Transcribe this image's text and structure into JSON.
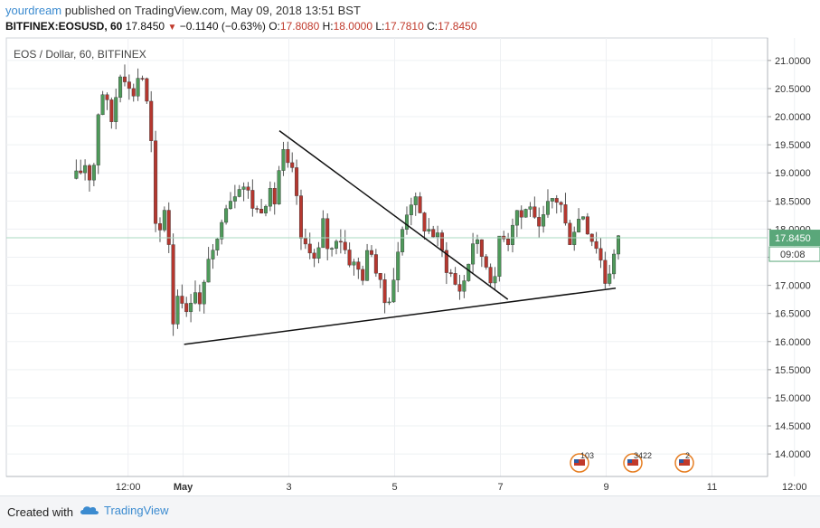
{
  "header": {
    "author": "yourdream",
    "published": "published on TradingView.com, May 09, 2018 13:51 BST"
  },
  "symbol_bar": {
    "symbol": "BITFINEX:EOSUSD, 60",
    "last": "17.8450",
    "change": "−0.1140 (−0.63%)",
    "o_label": "O:",
    "o": "17.8080",
    "h_label": "H:",
    "h": "18.0000",
    "l_label": "L:",
    "l": "17.7810",
    "c_label": "C:",
    "c": "17.8450",
    "down_color": "#c0392b"
  },
  "footer": {
    "created_with": "Created with",
    "brand": "TradingView"
  },
  "chart_data": {
    "type": "candlestick",
    "title": "EOS / Dollar, 60, BITFINEX",
    "colors": {
      "up": "#4e9a5a",
      "down": "#b5372f",
      "wick": "#555555",
      "trendline": "#111111",
      "last_price": "#5aa77a"
    },
    "ylim": [
      13.6,
      21.4
    ],
    "y_ticks": [
      "21.0000",
      "20.5000",
      "20.0000",
      "19.5000",
      "19.0000",
      "18.5000",
      "18.0000",
      "17.5000",
      "17.0000",
      "16.5000",
      "16.0000",
      "15.5000",
      "15.0000",
      "14.5000",
      "14.0000"
    ],
    "x_ticks": [
      {
        "label": "12:00",
        "x": 0.04
      },
      {
        "label": "May",
        "x": 0.56,
        "bold": true
      },
      {
        "label": "3",
        "x": 1.56
      },
      {
        "label": "5",
        "x": 2.56
      },
      {
        "label": "7",
        "x": 3.56
      },
      {
        "label": "9",
        "x": 4.56
      },
      {
        "label": "11",
        "x": 5.56
      },
      {
        "label": "12:00",
        "x": 6.34
      }
    ],
    "last_price": "17.8450",
    "countdown": "09:08",
    "event_badges": [
      "103",
      "3422",
      "2"
    ],
    "trendlines": [
      {
        "x1": 1.47,
        "y1": 19.75,
        "x2": 3.63,
        "y2": 16.75
      },
      {
        "x1": 0.57,
        "y1": 15.95,
        "x2": 4.65,
        "y2": 16.95
      }
    ],
    "close_path": [
      [
        -0.45,
        18.9
      ],
      [
        -0.36,
        19.2
      ],
      [
        -0.3,
        18.8
      ],
      [
        -0.22,
        20.6
      ],
      [
        -0.12,
        19.9
      ],
      [
        -0.02,
        21.0
      ],
      [
        0.07,
        20.3
      ],
      [
        0.16,
        20.9
      ],
      [
        0.25,
        19.8
      ],
      [
        0.31,
        17.6
      ],
      [
        0.4,
        18.6
      ],
      [
        0.47,
        16.3
      ],
      [
        0.53,
        17.2
      ],
      [
        0.58,
        16.3
      ],
      [
        0.66,
        17.1
      ],
      [
        0.73,
        16.5
      ],
      [
        0.8,
        17.6
      ],
      [
        0.86,
        17.4
      ],
      [
        0.94,
        18.5
      ],
      [
        1.02,
        18.6
      ],
      [
        1.1,
        18.9
      ],
      [
        1.18,
        18.6
      ],
      [
        1.25,
        18.3
      ],
      [
        1.35,
        18.6
      ],
      [
        1.43,
        18.5
      ],
      [
        1.49,
        19.4
      ],
      [
        1.56,
        19.0
      ],
      [
        1.62,
        18.9
      ],
      [
        1.68,
        17.6
      ],
      [
        1.75,
        17.8
      ],
      [
        1.82,
        17.3
      ],
      [
        1.88,
        18.1
      ],
      [
        1.95,
        17.5
      ],
      [
        2.02,
        18.0
      ],
      [
        2.1,
        17.6
      ],
      [
        2.19,
        17.3
      ],
      [
        2.27,
        17.2
      ],
      [
        2.33,
        17.8
      ],
      [
        2.4,
        17.1
      ],
      [
        2.46,
        16.7
      ],
      [
        2.52,
        16.9
      ],
      [
        2.58,
        17.4
      ],
      [
        2.66,
        18.3
      ],
      [
        2.73,
        18.6
      ],
      [
        2.8,
        18.2
      ],
      [
        2.87,
        18.0
      ],
      [
        2.95,
        17.9
      ],
      [
        3.02,
        17.5
      ],
      [
        3.09,
        17.2
      ],
      [
        3.16,
        16.9
      ],
      [
        3.22,
        17.1
      ],
      [
        3.3,
        17.8
      ],
      [
        3.37,
        17.6
      ],
      [
        3.45,
        17.3
      ],
      [
        3.51,
        17.0
      ],
      [
        3.56,
        18.1
      ],
      [
        3.63,
        17.8
      ],
      [
        3.7,
        18.4
      ],
      [
        3.77,
        18.2
      ],
      [
        3.84,
        18.5
      ],
      [
        3.91,
        17.8
      ],
      [
        3.99,
        18.3
      ],
      [
        4.07,
        18.6
      ],
      [
        4.14,
        18.4
      ],
      [
        4.2,
        17.8
      ],
      [
        4.27,
        18.1
      ],
      [
        4.34,
        18.3
      ],
      [
        4.41,
        17.9
      ],
      [
        4.48,
        17.7
      ],
      [
        4.55,
        17.1
      ],
      [
        4.61,
        17.4
      ],
      [
        4.68,
        17.8
      ]
    ]
  }
}
